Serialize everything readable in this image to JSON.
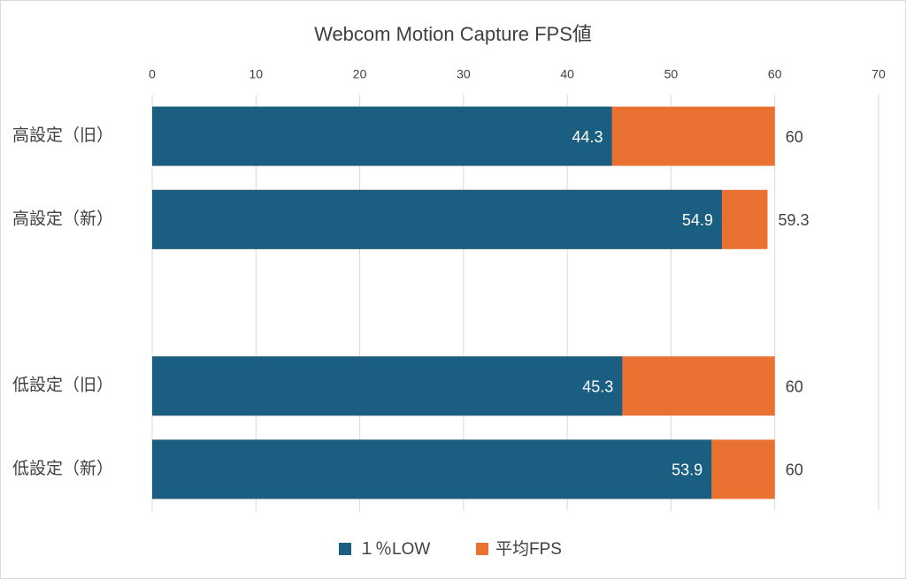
{
  "chart_data": {
    "type": "bar",
    "orientation": "horizontal",
    "overlap": true,
    "title": "Webcom Motion Capture FPS値",
    "categories": [
      "高設定（旧）",
      "高設定（新）",
      null,
      "低設定（旧）",
      "低設定（新）"
    ],
    "series": [
      {
        "name": "１％LOW",
        "color": "#1a5f82",
        "values": [
          44.3,
          54.9,
          null,
          45.3,
          53.9
        ]
      },
      {
        "name": "平均FPS",
        "color": "#e97132",
        "values": [
          60,
          59.3,
          null,
          60,
          60
        ]
      }
    ],
    "xlim": [
      0,
      70
    ],
    "xticks": [
      0,
      10,
      20,
      30,
      40,
      50,
      60,
      70
    ],
    "grid": true,
    "legend": "bottom"
  }
}
